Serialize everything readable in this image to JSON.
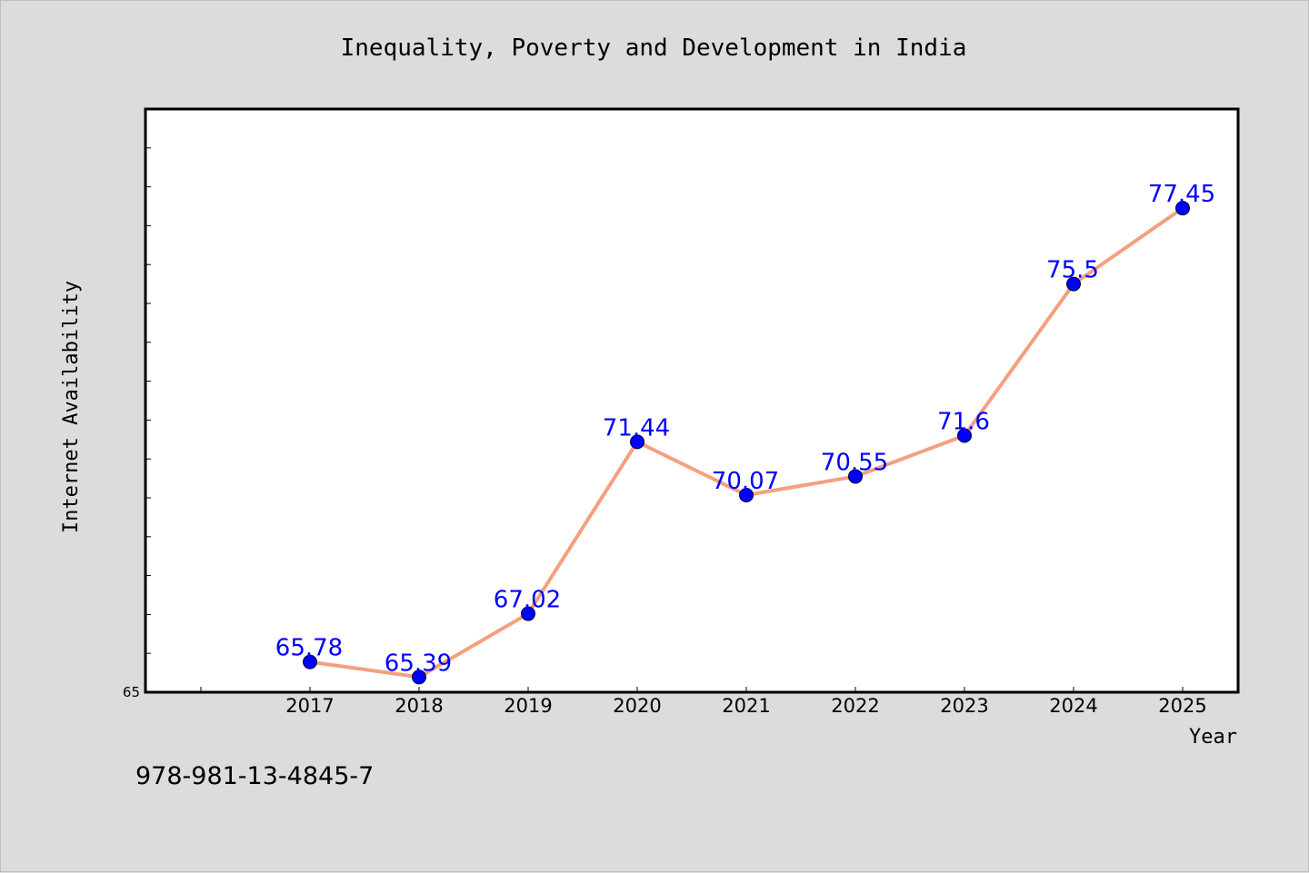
{
  "chart_data": {
    "type": "line",
    "title": "Inequality, Poverty and Development in India",
    "xlabel": "Year",
    "ylabel": "Internet Availability",
    "categories": [
      "2017",
      "2018",
      "2019",
      "2020",
      "2021",
      "2022",
      "2023",
      "2024",
      "2025"
    ],
    "series": [
      {
        "values": [
          65.78,
          65.39,
          67.02,
          71.44,
          70.07,
          70.55,
          71.6,
          75.5,
          77.45
        ],
        "labels": [
          "65.78",
          "65.39",
          "67.02",
          "71.44",
          "70.07",
          "70.55",
          "71.6",
          "75.5",
          "77.45"
        ],
        "line_color": "#f4a07e",
        "marker_color": "#0000ff"
      }
    ],
    "ylim": [
      65,
      80
    ],
    "ytick_labels": [
      "65"
    ],
    "grid": false,
    "legend": "none"
  },
  "footer": {
    "isbn": "978-981-13-4845-7"
  }
}
